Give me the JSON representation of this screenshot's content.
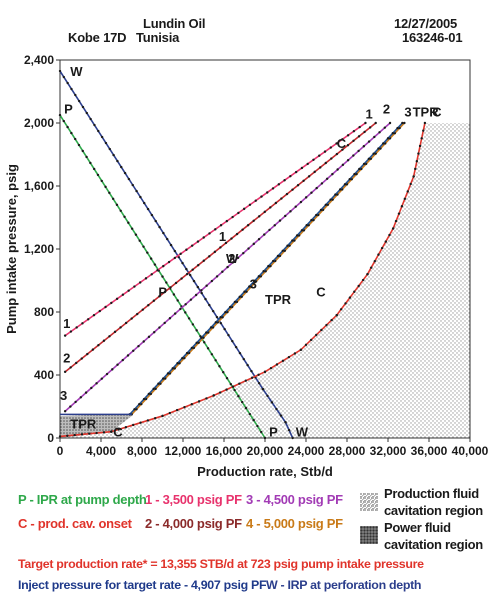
{
  "header": {
    "well": "Kobe 17D",
    "operator": "Lundin Oil",
    "country": "Tunisia",
    "date": "12/27/2005",
    "code": "163246-01"
  },
  "chart_data": {
    "type": "line",
    "xlabel": "Production rate, Stb/d",
    "ylabel": "Pump intake pressure, psig",
    "xlim": [
      0,
      40000
    ],
    "ylim": [
      0,
      2400
    ],
    "xticks": [
      0,
      4000,
      8000,
      12000,
      16000,
      20000,
      24000,
      28000,
      32000,
      36000,
      40000
    ],
    "xtick_labels": [
      "0",
      "4,000",
      "8,000",
      "12,000",
      "16,000",
      "20,000",
      "24,000",
      "28,000",
      "32,000",
      "36,000",
      "40,000"
    ],
    "yticks": [
      0,
      400,
      800,
      1200,
      1600,
      2000,
      2400
    ],
    "ytick_labels": [
      "0",
      "400",
      "800",
      "1,200",
      "1,600",
      "2,000",
      "2,400"
    ],
    "grid": false,
    "series": [
      {
        "name": "P - IPR at pump depth",
        "label": "P",
        "color": "#2ea84a",
        "x": [
          0,
          20000
        ],
        "y": [
          2050,
          0
        ]
      },
      {
        "name": "W - IRP at perforation depth",
        "label": "W",
        "color": "#2b3e8c",
        "x": [
          0,
          19800,
          22000,
          22700
        ],
        "y": [
          2330,
          310,
          100,
          0
        ]
      },
      {
        "name": "1 - 3,500 psig PF",
        "label": "1",
        "color": "#e8336d",
        "x": [
          500,
          29800
        ],
        "y": [
          650,
          2000
        ]
      },
      {
        "name": "2 - 4,000 psig PF",
        "label": "2",
        "color": "#c4282d",
        "x": [
          500,
          30800
        ],
        "y": [
          420,
          2000
        ]
      },
      {
        "name": "3 - 4,500 psig PF",
        "label": "3",
        "color": "#a23bb5",
        "x": [
          500,
          32200
        ],
        "y": [
          170,
          2000
        ]
      },
      {
        "name": "4 - 5,000 psig PF",
        "label": "TPR",
        "color": "#c97a18",
        "x": [
          7000,
          33600
        ],
        "y": [
          150,
          2000
        ]
      },
      {
        "name": "TPR",
        "label": "TPR",
        "color": "#1f4f8f",
        "x": [
          6800,
          33400
        ],
        "y": [
          150,
          2000
        ]
      },
      {
        "name": "C - prod. cav. onset",
        "label": "C",
        "color": "#e0342b",
        "x": [
          0,
          5000,
          10000,
          15000,
          20000,
          23500,
          27000,
          30000,
          32500,
          34500,
          35600
        ],
        "y": [
          10,
          40,
          140,
          270,
          420,
          560,
          780,
          1040,
          1330,
          1660,
          2000
        ]
      }
    ],
    "regions": [
      {
        "name": "Production fluid cavitation region",
        "pattern": "light-dots"
      },
      {
        "name": "Power fluid cavitation region",
        "pattern": "dark-dots"
      }
    ],
    "target_point": {
      "x": 13355,
      "y": 723
    }
  },
  "legend": {
    "p_ipr": "P - IPR at pump depth",
    "c_cav": "C - prod. cav. onset",
    "pf1": "1 - 3,500 psig PF",
    "pf2": "2 - 4,000 psig PF",
    "pf3": "3 - 4,500 psig PF",
    "pf4": "4 - 5,000 psig PF",
    "prod_cav": "Production fluid",
    "prod_cav2": "cavitation region",
    "power_cav": "Power fluid",
    "power_cav2": "cavitation region",
    "target": "Target production rate* = 13,355 STB/d at 723 psig pump intake pressure",
    "inject": "Inject pressure for target rate - 4,907 psig PF",
    "w_irp": "W - IRP at perforation depth"
  },
  "colors": {
    "p": "#2ea84a",
    "c": "#e0342b",
    "pf1": "#e8336d",
    "pf2": "#c4282d",
    "pf3": "#a23bb5",
    "pf4": "#c97a18",
    "target": "#e0342b",
    "inject": "#1f3a8a",
    "w": "#2b3e8c"
  }
}
